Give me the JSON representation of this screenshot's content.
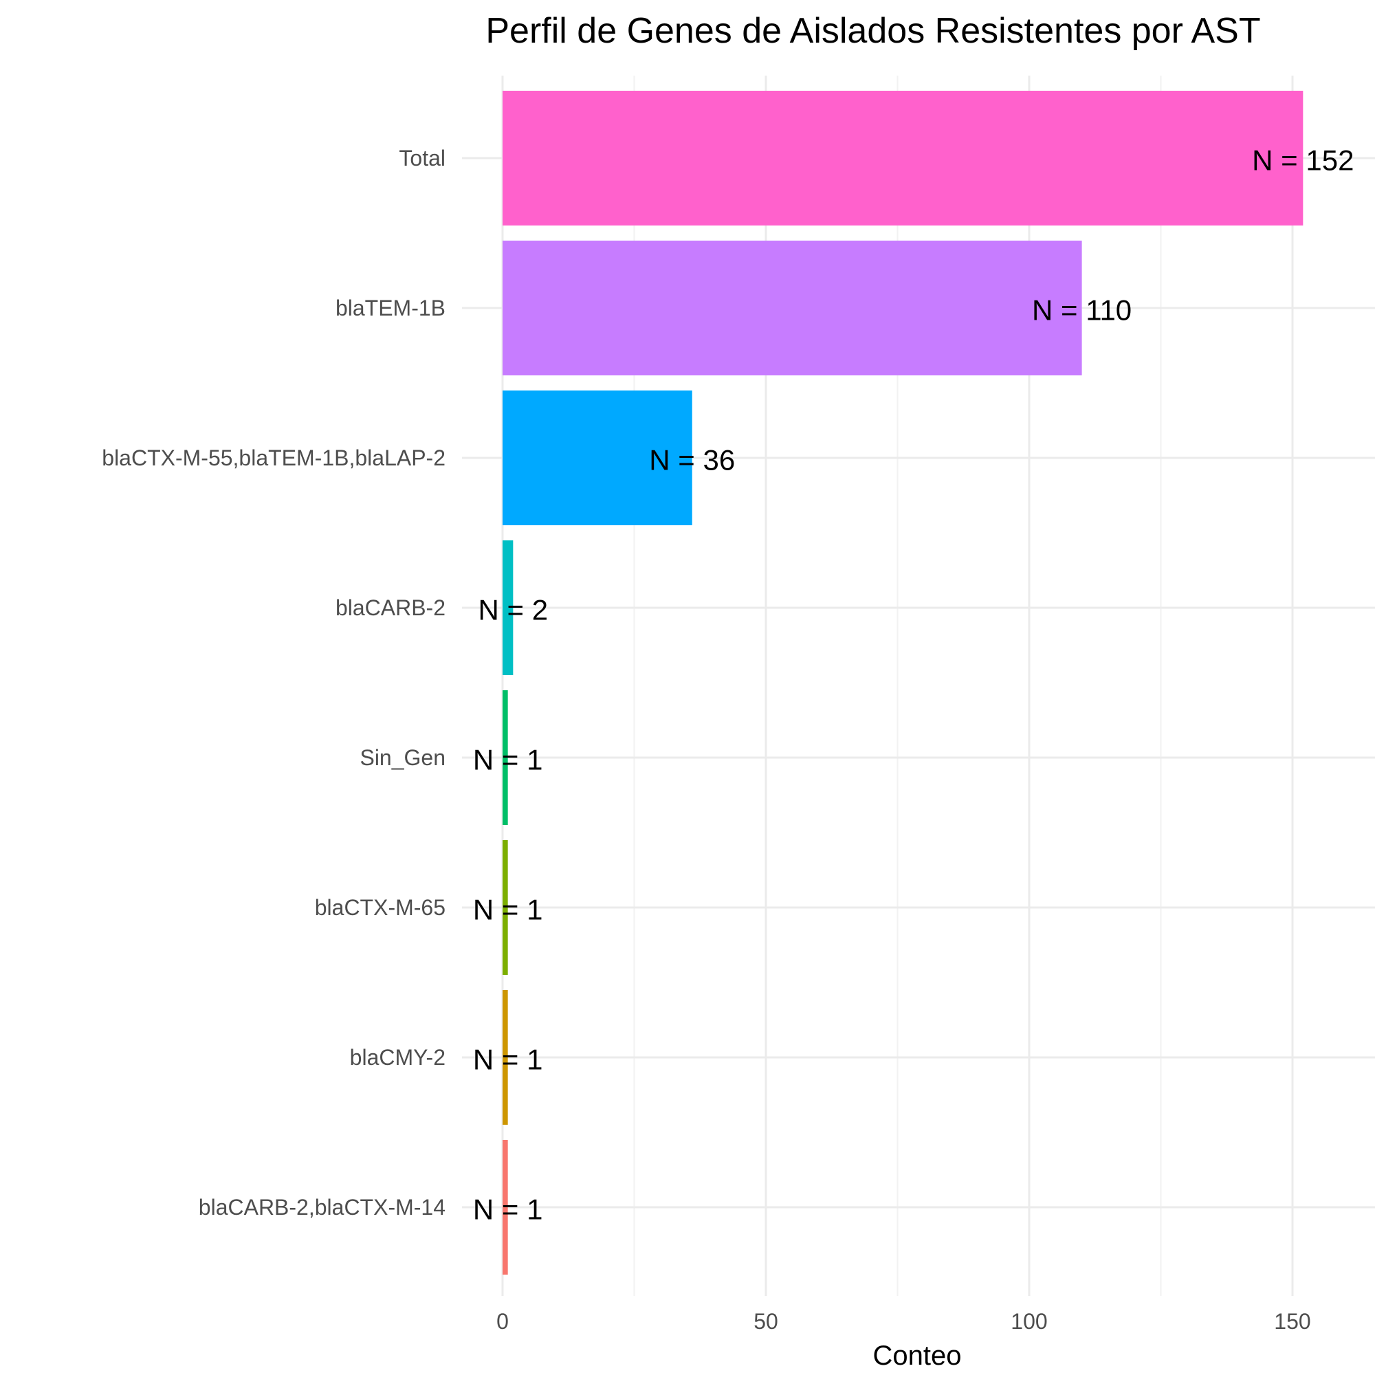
{
  "chart_data": {
    "type": "bar",
    "orientation": "horizontal",
    "title": "Perfil de Genes de Aislados Resistentes por AST",
    "xlabel": "Conteo",
    "ylabel": "",
    "xlim": [
      0,
      166
    ],
    "x_ticks": [
      "0",
      "50",
      "100",
      "150"
    ],
    "grid": true,
    "legend": "none",
    "categories": [
      "Total",
      "blaTEM-1B",
      "blaCTX-M-55,blaTEM-1B,blaLAP-2",
      "blaCARB-2",
      "Sin_Gen",
      "blaCTX-M-65",
      "blaCMY-2",
      "blaCARB-2,blaCTX-M-14"
    ],
    "values": [
      152,
      110,
      36,
      2,
      1,
      1,
      1,
      1
    ],
    "data_labels": [
      "N = 152",
      "N = 110",
      "N = 36",
      "N = 2",
      "N = 1",
      "N = 1",
      "N = 1",
      "N = 1"
    ],
    "colors": [
      "#FF61CC",
      "#C77CFF",
      "#00A9FF",
      "#00BFC4",
      "#00BE67",
      "#7CAE00",
      "#CD9600",
      "#F8766D"
    ]
  }
}
